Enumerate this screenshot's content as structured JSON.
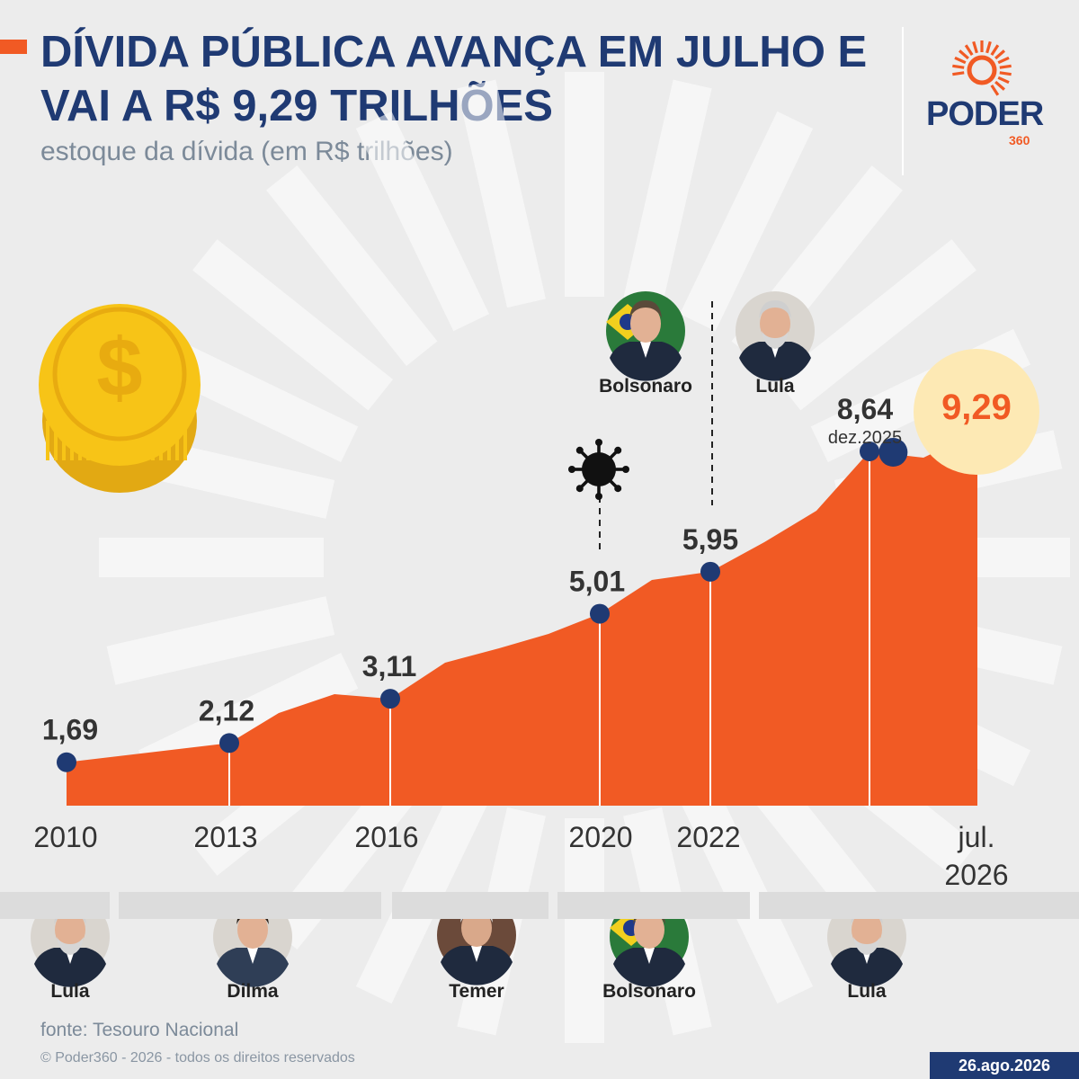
{
  "header": {
    "title": "DÍVIDA PÚBLICA AVANÇA EM JULHO E VAI A R$ 9,29 TRILHÕES",
    "subtitle": "estoque da dívida (em R$ trilhões)"
  },
  "logo": {
    "word": "PODER",
    "number": "360"
  },
  "colors": {
    "accent": "#f15a24",
    "navy": "#1f3a73",
    "coin": "#f7c417",
    "highlight": "#fde9b4",
    "background": "#ececec"
  },
  "chart_data": {
    "type": "area",
    "x": [
      "2010-01",
      "2013-01",
      "2016-01",
      "2020-01",
      "2022-01",
      "2025-12",
      "2026-07"
    ],
    "values": [
      1.69,
      2.12,
      3.11,
      5.01,
      5.95,
      8.64,
      9.29
    ],
    "labels": [
      "1,69",
      "2,12",
      "3,11",
      "5,01",
      "5,95",
      "8,64",
      "9,29"
    ],
    "x_tick_labels": [
      "2010",
      "2013",
      "2016",
      "2020",
      "2022",
      "jul. 2026"
    ],
    "annotations": {
      "dec2025": "dez.2025"
    },
    "title": "DÍVIDA PÚBLICA AVANÇA EM JULHO E VAI A R$ 9,29 TRILHÕES",
    "grid": false,
    "legend": "none"
  },
  "presidents_bottom": [
    "Lula",
    "Dilma",
    "Temer",
    "Bolsonaro",
    "Lula"
  ],
  "presidents_top": [
    "Bolsonaro",
    "Lula"
  ],
  "icons": {
    "coin": "dollar-coin-icon",
    "virus": "virus-icon",
    "logo": "poder360-sun-icon"
  },
  "footer": {
    "source": "fonte: Tesouro Nacional",
    "copyright": "© Poder360 - 2026 - todos os direitos reservados",
    "date": "26.ago.2026"
  }
}
